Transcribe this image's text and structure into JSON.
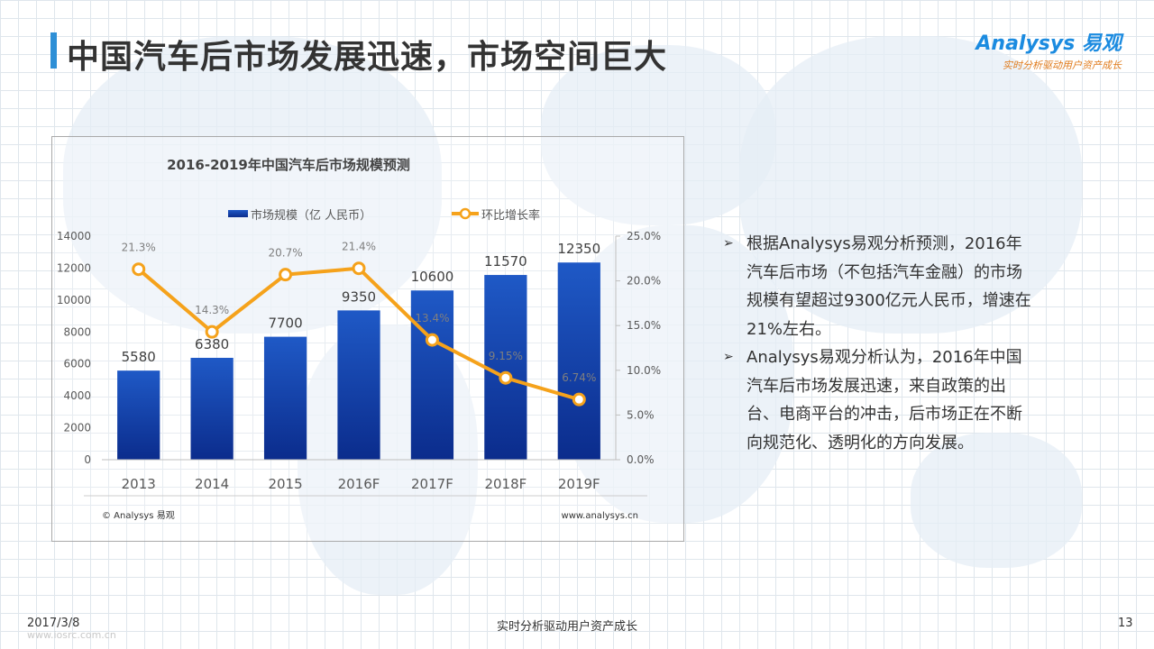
{
  "page": {
    "title": "中国汽车后市场发展迅速，市场空间巨大",
    "logo_main": "Analysys 易观",
    "logo_sub": "实时分析驱动用户资产成长",
    "footer_date": "2017/3/8",
    "footer_slogan": "实时分析驱动用户资产成长",
    "footer_page": "13",
    "footer_url": "www.iosrc.com.cn"
  },
  "bullets": [
    "根据Analysys易观分析预测，2016年汽车后市场（不包括汽车金融）的市场规模有望超过9300亿元人民币，增速在21%左右。",
    "Analysys易观分析认为，2016年中国汽车后市场发展迅速，来自政策的出台、电商平台的冲击，后市场正在不断向规范化、透明化的方向发展。"
  ],
  "colors": {
    "title_accent": "#2e8fd6",
    "bar_top": "#1f59c6",
    "bar_bottom": "#0b2c8c",
    "line": "#f5a21b",
    "brand": "#1b8be0",
    "brand_sub": "#e07b1c"
  },
  "chart_data": {
    "type": "bar",
    "title": "2016-2019年中国汽车后市场规模预测",
    "categories": [
      "2013",
      "2014",
      "2015",
      "2016F",
      "2017F",
      "2018F",
      "2019F"
    ],
    "series": [
      {
        "name": "市场规模（亿 人民币）",
        "type": "bar",
        "axis": "left",
        "values": [
          5580,
          6380,
          7700,
          9350,
          10600,
          11570,
          12350
        ],
        "labels": [
          "5580",
          "6380",
          "7700",
          "9350",
          "10600",
          "11570",
          "12350"
        ]
      },
      {
        "name": "环比增长率",
        "type": "line",
        "axis": "right",
        "values": [
          21.3,
          14.3,
          20.7,
          21.4,
          13.4,
          9.15,
          6.74
        ],
        "labels": [
          "21.3%",
          "14.3%",
          "20.7%",
          "21.4%",
          "13.4%",
          "9.15%",
          "6.74%"
        ]
      }
    ],
    "ylim": [
      0,
      14000
    ],
    "y_ticks": [
      "0",
      "2000",
      "4000",
      "6000",
      "8000",
      "10000",
      "12000",
      "14000"
    ],
    "y2lim": [
      0,
      25
    ],
    "y2_ticks": [
      "0.0%",
      "5.0%",
      "10.0%",
      "15.0%",
      "20.0%",
      "25.0%"
    ],
    "legend": "top",
    "grid": false,
    "source_left": "© Analysys 易观",
    "source_right": "www.analysys.cn"
  }
}
